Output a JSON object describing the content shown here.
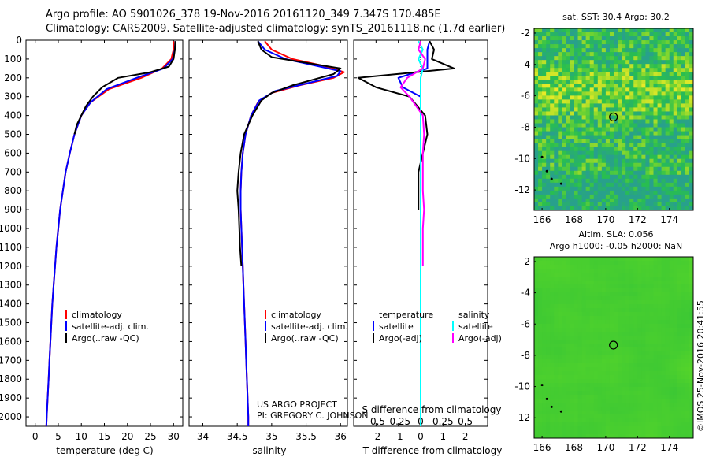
{
  "header": {
    "line1": "Argo profile: AO 5901026_378 19-Nov-2016 20161120_349 7.347S 170.485E",
    "line2": "Climatology: CARS2009. Satellite-adjusted climatology: synTS_20161118.nc (1.7d earlier)"
  },
  "colors": {
    "climatology": "#ff0000",
    "satellite": "#0000ff",
    "argo": "#000000",
    "salinity_satellite": "#00ffff",
    "salinity_argo": "#ff00ff"
  },
  "chart_data": [
    {
      "type": "line",
      "title": "",
      "xlabel": "temperature (deg C)",
      "ylabel": "",
      "xlim": [
        -2,
        32
      ],
      "ylim": [
        2050,
        0
      ],
      "xticks": [
        0,
        5,
        10,
        15,
        20,
        25,
        30
      ],
      "yticks": [
        0,
        100,
        200,
        300,
        400,
        500,
        600,
        700,
        800,
        900,
        1000,
        1100,
        1200,
        1300,
        1400,
        1500,
        1600,
        1700,
        1800,
        1900,
        2000
      ],
      "legend": [
        "climatology",
        "satellite-adj. clim.",
        "Argo(..raw -QC)"
      ],
      "series": [
        {
          "name": "climatology",
          "color": "#ff0000",
          "points": [
            [
              30,
              5
            ],
            [
              30,
              50
            ],
            [
              29.5,
              100
            ],
            [
              27.5,
              150
            ],
            [
              23,
              200
            ],
            [
              16,
              260
            ],
            [
              12,
              330
            ],
            [
              10,
              400
            ],
            [
              8.5,
              500
            ],
            [
              7.5,
              600
            ],
            [
              6.6,
              700
            ],
            [
              6,
              800
            ],
            [
              5.4,
              900
            ],
            [
              5,
              1000
            ],
            [
              4.6,
              1100
            ],
            [
              4.3,
              1200
            ],
            [
              4,
              1300
            ],
            [
              3.7,
              1400
            ],
            [
              3.5,
              1500
            ],
            [
              3.3,
              1600
            ],
            [
              3.1,
              1700
            ],
            [
              2.9,
              1800
            ],
            [
              2.7,
              1900
            ],
            [
              2.5,
              2000
            ],
            [
              2.4,
              2050
            ]
          ]
        },
        {
          "name": "satellite-adj. clim.",
          "color": "#0000ff",
          "points": [
            [
              30.4,
              5
            ],
            [
              30.3,
              50
            ],
            [
              29.8,
              100
            ],
            [
              27.8,
              150
            ],
            [
              22,
              200
            ],
            [
              15.5,
              260
            ],
            [
              12,
              330
            ],
            [
              10,
              400
            ],
            [
              8.5,
              500
            ],
            [
              7.5,
              600
            ],
            [
              6.6,
              700
            ],
            [
              6,
              800
            ],
            [
              5.4,
              900
            ],
            [
              5,
              1000
            ],
            [
              4.6,
              1100
            ],
            [
              4.3,
              1200
            ],
            [
              4,
              1300
            ],
            [
              3.7,
              1400
            ],
            [
              3.5,
              1500
            ],
            [
              3.3,
              1600
            ],
            [
              3.1,
              1700
            ],
            [
              2.9,
              1800
            ],
            [
              2.7,
              1900
            ],
            [
              2.5,
              2000
            ],
            [
              2.4,
              2050
            ]
          ]
        },
        {
          "name": "Argo(..raw -QC)",
          "color": "#000000",
          "points": [
            [
              30.4,
              5
            ],
            [
              30.3,
              50
            ],
            [
              30,
              100
            ],
            [
              29,
              140
            ],
            [
              25,
              170
            ],
            [
              18,
              200
            ],
            [
              14.5,
              250
            ],
            [
              12.5,
              300
            ],
            [
              11,
              350
            ],
            [
              10,
              400
            ],
            [
              9,
              450
            ],
            [
              8.5,
              500
            ]
          ]
        }
      ]
    },
    {
      "type": "line",
      "title": "",
      "xlabel": "salinity",
      "ylabel": "",
      "xlim": [
        33.8,
        36.1
      ],
      "ylim": [
        2050,
        0
      ],
      "xticks": [
        34,
        34.5,
        35,
        35.5,
        36
      ],
      "legend": [
        "climatology",
        "satellite-adj. clim.",
        "Argo(..raw -QC)"
      ],
      "annotation": [
        "US ARGO PROJECT",
        "PI: GREGORY C. JOHNSON"
      ],
      "series": [
        {
          "name": "climatology",
          "color": "#ff0000",
          "points": [
            [
              34.9,
              5
            ],
            [
              35.0,
              50
            ],
            [
              35.3,
              100
            ],
            [
              35.8,
              140
            ],
            [
              36.05,
              170
            ],
            [
              35.9,
              200
            ],
            [
              35.4,
              240
            ],
            [
              35.0,
              280
            ],
            [
              34.8,
              330
            ],
            [
              34.7,
              400
            ],
            [
              34.62,
              500
            ],
            [
              34.58,
              600
            ],
            [
              34.56,
              700
            ],
            [
              34.55,
              800
            ],
            [
              34.55,
              900
            ],
            [
              34.56,
              1000
            ],
            [
              34.57,
              1100
            ],
            [
              34.58,
              1200
            ],
            [
              34.59,
              1300
            ],
            [
              34.6,
              1400
            ],
            [
              34.61,
              1500
            ],
            [
              34.62,
              1600
            ],
            [
              34.63,
              1700
            ],
            [
              34.64,
              1800
            ],
            [
              34.65,
              1900
            ],
            [
              34.66,
              2000
            ],
            [
              34.66,
              2050
            ]
          ]
        },
        {
          "name": "satellite-adj. clim.",
          "color": "#0000ff",
          "points": [
            [
              34.8,
              5
            ],
            [
              34.9,
              50
            ],
            [
              35.2,
              100
            ],
            [
              35.7,
              140
            ],
            [
              36.0,
              165
            ],
            [
              35.95,
              190
            ],
            [
              35.5,
              230
            ],
            [
              35.05,
              270
            ],
            [
              34.82,
              320
            ],
            [
              34.7,
              400
            ],
            [
              34.62,
              500
            ],
            [
              34.58,
              600
            ],
            [
              34.56,
              700
            ],
            [
              34.55,
              800
            ],
            [
              34.55,
              900
            ],
            [
              34.56,
              1000
            ],
            [
              34.57,
              1100
            ],
            [
              34.58,
              1200
            ],
            [
              34.59,
              1300
            ],
            [
              34.6,
              1400
            ],
            [
              34.61,
              1500
            ],
            [
              34.62,
              1600
            ],
            [
              34.63,
              1700
            ],
            [
              34.64,
              1800
            ],
            [
              34.65,
              1900
            ],
            [
              34.66,
              2000
            ],
            [
              34.66,
              2050
            ]
          ]
        },
        {
          "name": "Argo(..raw -QC)",
          "color": "#000000",
          "points": [
            [
              34.8,
              5
            ],
            [
              34.85,
              50
            ],
            [
              35.0,
              90
            ],
            [
              35.5,
              120
            ],
            [
              36.0,
              150
            ],
            [
              35.9,
              180
            ],
            [
              35.6,
              210
            ],
            [
              35.3,
              240
            ],
            [
              35.0,
              280
            ],
            [
              34.85,
              320
            ],
            [
              34.72,
              400
            ],
            [
              34.6,
              500
            ],
            [
              34.55,
              600
            ],
            [
              34.52,
              700
            ],
            [
              34.5,
              800
            ],
            [
              34.52,
              900
            ],
            [
              34.53,
              1000
            ],
            [
              34.54,
              1100
            ],
            [
              34.56,
              1200
            ]
          ]
        }
      ]
    },
    {
      "type": "line",
      "title": "",
      "xlabel": "T difference from climatology",
      "xlabel_top": "S difference from climatology",
      "xlim": [
        -3,
        3
      ],
      "ylim": [
        2050,
        0
      ],
      "xticks": [
        -2,
        -1,
        0,
        1,
        2
      ],
      "xticks_top": [
        -0.5,
        -0.25,
        0,
        0.25,
        0.5
      ],
      "legend_left": {
        "title": "temperature",
        "items": [
          "satellite",
          "Argo(-adj)"
        ]
      },
      "legend_right": {
        "title": "salinity",
        "items": [
          "satellite",
          "Argo(-adj)"
        ]
      },
      "series": [
        {
          "name": "temperature satellite",
          "color": "#0000ff",
          "points": [
            [
              0.4,
              5
            ],
            [
              0.3,
              50
            ],
            [
              0.3,
              100
            ],
            [
              0.3,
              150
            ],
            [
              -1,
              200
            ],
            [
              -0.8,
              250
            ],
            [
              0,
              300
            ],
            [
              0,
              400
            ],
            [
              0,
              600
            ],
            [
              0,
              800
            ],
            [
              0,
              1000
            ],
            [
              0,
              1200
            ],
            [
              0,
              1400
            ],
            [
              0,
              1600
            ],
            [
              0,
              1800
            ],
            [
              0,
              2050
            ]
          ]
        },
        {
          "name": "temperature Argo(-adj)",
          "color": "#000000",
          "points": [
            [
              0.4,
              5
            ],
            [
              0.6,
              50
            ],
            [
              0.5,
              100
            ],
            [
              1.5,
              150
            ],
            [
              -2.8,
              200
            ],
            [
              -2,
              250
            ],
            [
              -0.5,
              300
            ],
            [
              0.2,
              400
            ],
            [
              0.3,
              500
            ],
            [
              0.1,
              600
            ],
            [
              -0.1,
              700
            ],
            [
              -0.1,
              800
            ],
            [
              -0.1,
              900
            ]
          ]
        },
        {
          "name": "salinity satellite",
          "color": "#00ffff",
          "points": [
            [
              -0.1,
              5
            ],
            [
              0.1,
              50
            ],
            [
              -0.1,
              100
            ],
            [
              0.1,
              150
            ],
            [
              0,
              200
            ],
            [
              0,
              300
            ],
            [
              0,
              400
            ],
            [
              0,
              600
            ],
            [
              0,
              800
            ],
            [
              0,
              1000
            ],
            [
              0,
              1200
            ],
            [
              0,
              1400
            ],
            [
              0,
              1600
            ],
            [
              0,
              1800
            ],
            [
              0,
              2050
            ]
          ]
        },
        {
          "name": "salinity Argo(-adj)",
          "color": "#ff00ff",
          "points": [
            [
              0,
              5
            ],
            [
              -0.1,
              50
            ],
            [
              0.2,
              100
            ],
            [
              0.1,
              150
            ],
            [
              -0.6,
              200
            ],
            [
              -0.9,
              250
            ],
            [
              -0.5,
              300
            ],
            [
              0.1,
              400
            ],
            [
              0.15,
              500
            ],
            [
              0.1,
              600
            ],
            [
              0.1,
              700
            ],
            [
              0.1,
              800
            ],
            [
              0.15,
              900
            ],
            [
              0.1,
              1000
            ],
            [
              0.1,
              1100
            ],
            [
              0.1,
              1200
            ]
          ]
        }
      ]
    },
    {
      "type": "heatmap",
      "title": "sat. SST: 30.4 Argo: 30.2",
      "xlim": [
        165.5,
        175.5
      ],
      "ylim": [
        -13.3,
        -1.7
      ],
      "xticks": [
        166,
        168,
        170,
        172,
        174
      ],
      "yticks": [
        -2,
        -4,
        -6,
        -8,
        -10,
        -12
      ],
      "marker": [
        170.485,
        -7.347
      ]
    },
    {
      "type": "heatmap",
      "title": "Altim. SLA: 0.056",
      "subtitle": "Argo h1000: -0.05 h2000: NaN",
      "xlim": [
        165.5,
        175.5
      ],
      "ylim": [
        -13.3,
        -1.7
      ],
      "xticks": [
        166,
        168,
        170,
        172,
        174
      ],
      "yticks": [
        -2,
        -4,
        -6,
        -8,
        -10,
        -12
      ],
      "marker": [
        170.485,
        -7.347
      ]
    }
  ],
  "credit": "©IMOS 25-Nov-2016 20:41:55"
}
